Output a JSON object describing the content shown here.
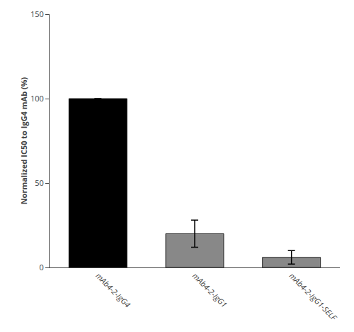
{
  "chart_data": {
    "type": "bar",
    "categories": [
      "mAb4-2-IgG4",
      "mAb4-2-IgG1",
      "mAb4-2-IgG1-SELF"
    ],
    "values": [
      100,
      20,
      6
    ],
    "errors": [
      0,
      8,
      4
    ],
    "colors": [
      "#000000",
      "#888888",
      "#888888"
    ],
    "ylabel": "Normalized IC50 to IgG4 mAb (%)",
    "ylim": [
      0,
      150
    ],
    "yticks": [
      0,
      50,
      100,
      150
    ],
    "grid": false
  }
}
